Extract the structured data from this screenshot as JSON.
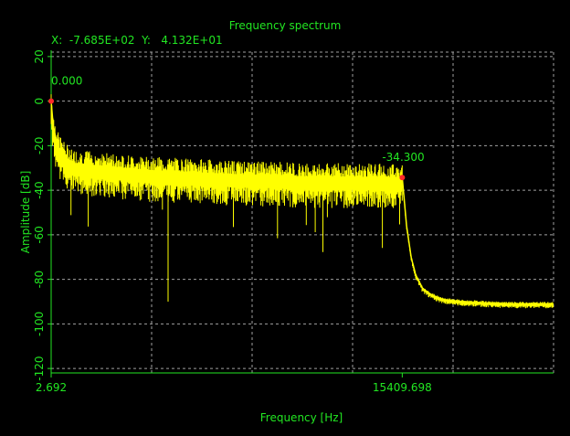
{
  "window": {
    "title": "Frequency spectrum",
    "cursor_readout": "X:  -7.685E+02  Y:   4.132E+01"
  },
  "chart_data": {
    "type": "line",
    "title": "Frequency spectrum",
    "xlabel": "Frequency [Hz]",
    "ylabel": "Amplitude [dB]",
    "x_tick_labels": [
      "2.692",
      "15409.698"
    ],
    "x_ticks": [
      2.692,
      15409.698
    ],
    "y_ticks": [
      20,
      0,
      -20,
      -40,
      -60,
      -80,
      -100,
      -120
    ],
    "y_tick_labels": [
      "20",
      "0",
      "-20",
      "-40",
      "-60",
      "-80",
      "-100",
      "-120"
    ],
    "xlim": [
      2.692,
      22050
    ],
    "ylim": [
      -122,
      22
    ],
    "grid": true,
    "series": [
      {
        "color": "#ffff00",
        "x": [
          2.692,
          100,
          300,
          600,
          1000,
          2000,
          3000,
          4000,
          5000,
          6000,
          7000,
          8000,
          9000,
          10000,
          11000,
          12000,
          13000,
          14000,
          15000,
          15409.698,
          15600,
          15800,
          16000,
          16300,
          16700,
          17200,
          18000,
          19000,
          20000,
          21000,
          22050
        ],
        "values": [
          0,
          -12,
          -20,
          -25,
          -28,
          -29,
          -30,
          -31,
          -31.5,
          -32,
          -32.5,
          -33,
          -33.3,
          -33.5,
          -34,
          -34,
          -34.2,
          -34.3,
          -34.3,
          -34.3,
          -56,
          -70,
          -78,
          -84,
          -87,
          -89,
          -90,
          -90.5,
          -91,
          -91,
          -91
        ]
      }
    ],
    "markers": [
      {
        "x": 2.692,
        "y": 0,
        "label": "0.000",
        "color": "#ff2a2a"
      },
      {
        "x": 15409.698,
        "y": -34.3,
        "label": "-34.300",
        "color": "#ff2a2a"
      }
    ]
  }
}
